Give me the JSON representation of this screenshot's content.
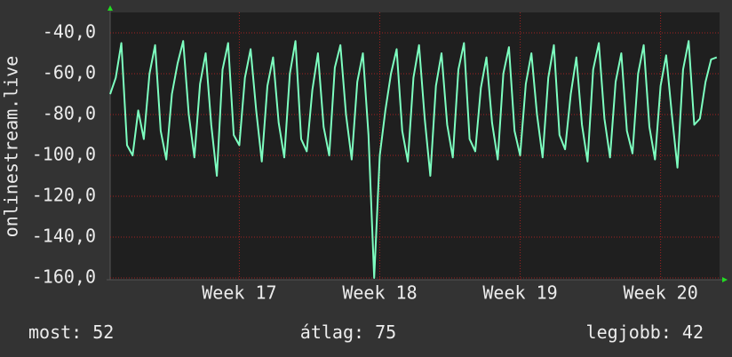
{
  "chart_data": {
    "type": "line",
    "y_label": "onlinestream.live",
    "x": [
      16.08,
      16.12,
      16.16,
      16.2,
      16.24,
      16.28,
      16.32,
      16.36,
      16.4,
      16.44,
      16.48,
      16.52,
      16.56,
      16.6,
      16.64,
      16.68,
      16.72,
      16.76,
      16.8,
      16.84,
      16.88,
      16.92,
      16.96,
      17,
      17.04,
      17.08,
      17.12,
      17.16,
      17.2,
      17.24,
      17.28,
      17.32,
      17.36,
      17.4,
      17.44,
      17.48,
      17.52,
      17.56,
      17.6,
      17.64,
      17.68,
      17.72,
      17.76,
      17.8,
      17.84,
      17.88,
      17.92,
      17.96,
      18,
      18.04,
      18.08,
      18.12,
      18.16,
      18.2,
      18.24,
      18.28,
      18.32,
      18.36,
      18.4,
      18.44,
      18.48,
      18.52,
      18.56,
      18.6,
      18.64,
      18.68,
      18.72,
      18.76,
      18.8,
      18.84,
      18.88,
      18.92,
      18.96,
      19,
      19.04,
      19.08,
      19.12,
      19.16,
      19.2,
      19.24,
      19.28,
      19.32,
      19.36,
      19.4,
      19.44,
      19.48,
      19.52,
      19.56,
      19.6,
      19.64,
      19.68,
      19.72,
      19.76,
      19.8,
      19.84,
      19.88,
      19.92,
      19.96,
      20,
      20.04,
      20.08,
      20.12,
      20.16,
      20.2,
      20.24,
      20.28,
      20.32,
      20.36,
      20.4
    ],
    "series": [
      {
        "color": "#7dffc0",
        "values": [
          -70,
          -62,
          -45,
          -95,
          -100,
          -78,
          -92,
          -60,
          -46,
          -88,
          -102,
          -70,
          -55,
          -44,
          -80,
          -101,
          -65,
          -50,
          -85,
          -110,
          -58,
          -45,
          -90,
          -95,
          -62,
          -48,
          -78,
          -103,
          -66,
          -52,
          -84,
          -101,
          -60,
          -44,
          -92,
          -98,
          -68,
          -50,
          -86,
          -100,
          -57,
          -46,
          -80,
          -102,
          -64,
          -50,
          -90,
          -160,
          -100,
          -78,
          -60,
          -48,
          -88,
          -103,
          -62,
          -46,
          -82,
          -110,
          -66,
          -50,
          -85,
          -101,
          -58,
          -45,
          -92,
          -98,
          -67,
          -52,
          -84,
          -102,
          -60,
          -47,
          -88,
          -100,
          -65,
          -50,
          -80,
          -101,
          -62,
          -46,
          -90,
          -97,
          -70,
          -52,
          -85,
          -103,
          -58,
          -45,
          -82,
          -101,
          -64,
          -50,
          -88,
          -99,
          -60,
          -46,
          -86,
          -102,
          -66,
          -51,
          -80,
          -106,
          -58,
          -44,
          -85,
          -82,
          -64,
          -53,
          -52
        ]
      }
    ],
    "xlim": [
      16.08,
      20.42
    ],
    "xticks": [
      {
        "value": 17,
        "label": "Week 17"
      },
      {
        "value": 18,
        "label": "Week 18"
      },
      {
        "value": 19,
        "label": "Week 19"
      },
      {
        "value": 20,
        "label": "Week 20"
      }
    ],
    "ylim": [
      -160,
      -30
    ],
    "yticks": [
      {
        "value": -40,
        "label": "-40,0"
      },
      {
        "value": -60,
        "label": "-60,0"
      },
      {
        "value": -80,
        "label": "-80,0"
      },
      {
        "value": -100,
        "label": "-100,0"
      },
      {
        "value": -120,
        "label": "-120,0"
      },
      {
        "value": -140,
        "label": "-140,0"
      },
      {
        "value": -160,
        "label": "-160,0"
      }
    ],
    "grid": true,
    "stats": [
      {
        "label": "most:",
        "value": 52
      },
      {
        "label": "átlag:",
        "value": 75
      },
      {
        "label": "legjobb:",
        "value": 42
      }
    ]
  }
}
